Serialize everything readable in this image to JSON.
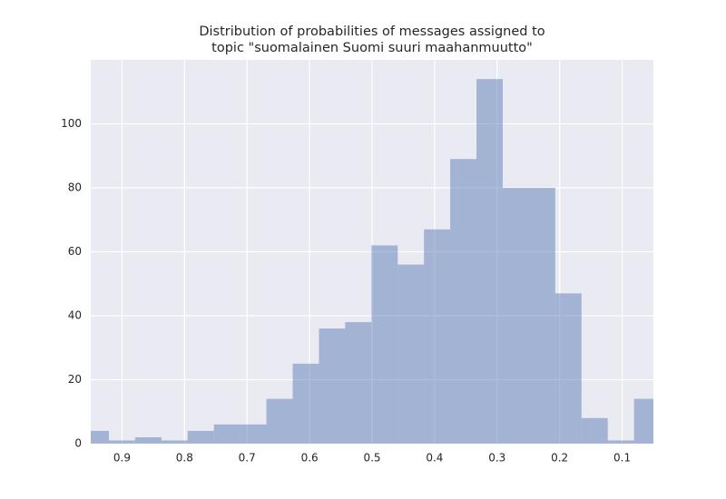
{
  "chart_data": {
    "type": "histogram",
    "title": [
      "Distribution of probabilities of messages assigned to",
      "topic \"suomalainen Suomi suuri maahanmuutto\""
    ],
    "bins": [
      0.039,
      0.081,
      0.123,
      0.165,
      0.207,
      0.249,
      0.291,
      0.333,
      0.375,
      0.417,
      0.459,
      0.501,
      0.543,
      0.585,
      0.627,
      0.669,
      0.711,
      0.753,
      0.795,
      0.837,
      0.879,
      0.921,
      0.963
    ],
    "values": [
      14,
      1,
      8,
      47,
      80,
      80,
      114,
      89,
      67,
      56,
      62,
      38,
      36,
      25,
      14,
      6,
      6,
      4,
      1,
      2,
      1,
      4
    ],
    "color": "#4c72b0",
    "alpha": 0.45,
    "xlim": [
      0.95,
      0.05
    ],
    "xticks": [
      0.9,
      0.8,
      0.7,
      0.6,
      0.5,
      0.4,
      0.3,
      0.2,
      0.1
    ],
    "ylim": [
      0,
      120
    ],
    "yticks": [
      0,
      20,
      40,
      60,
      80,
      100
    ],
    "grid": true
  }
}
